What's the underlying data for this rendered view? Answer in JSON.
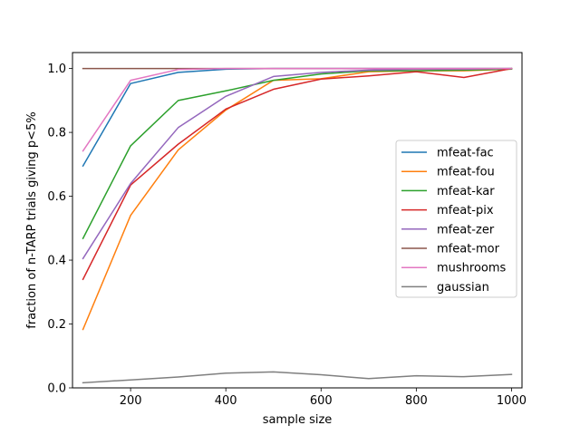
{
  "chart_data": {
    "type": "line",
    "title": "",
    "xlabel": "sample size",
    "ylabel": "fraction of n-TARP trials giving p<5%",
    "xlim": [
      78,
      1022
    ],
    "ylim": [
      0.0,
      1.05
    ],
    "xticks": [
      200,
      400,
      600,
      800,
      1000
    ],
    "yticks": [
      0.0,
      0.2,
      0.4,
      0.6,
      0.8,
      1.0
    ],
    "xtick_labels": [
      "200",
      "400",
      "600",
      "800",
      "1000"
    ],
    "ytick_labels": [
      "0.0",
      "0.2",
      "0.4",
      "0.6",
      "0.8",
      "1.0"
    ],
    "grid": false,
    "legend_position": "center-right",
    "x": [
      100,
      200,
      300,
      400,
      500,
      600,
      700,
      800,
      900,
      1000
    ],
    "series": [
      {
        "name": "mfeat-fac",
        "color": "#1f77b4",
        "values": [
          0.695,
          0.953,
          0.988,
          0.998,
          1.0,
          1.0,
          1.0,
          1.0,
          1.0,
          1.0
        ]
      },
      {
        "name": "mfeat-fou",
        "color": "#ff7f0e",
        "values": [
          0.183,
          0.54,
          0.745,
          0.87,
          0.963,
          0.968,
          0.99,
          0.993,
          0.993,
          0.998
        ]
      },
      {
        "name": "mfeat-kar",
        "color": "#2ca02c",
        "values": [
          0.468,
          0.758,
          0.9,
          0.93,
          0.963,
          0.983,
          0.993,
          0.993,
          0.995,
          0.998
        ]
      },
      {
        "name": "mfeat-pix",
        "color": "#d62728",
        "values": [
          0.34,
          0.635,
          0.763,
          0.873,
          0.935,
          0.967,
          0.977,
          0.99,
          0.972,
          1.0
        ]
      },
      {
        "name": "mfeat-zer",
        "color": "#9467bd",
        "values": [
          0.405,
          0.64,
          0.815,
          0.913,
          0.975,
          0.988,
          0.995,
          0.998,
          0.998,
          1.0
        ]
      },
      {
        "name": "mfeat-mor",
        "color": "#8c564b",
        "values": [
          1.0,
          1.0,
          1.0,
          1.0,
          1.0,
          1.0,
          1.0,
          1.0,
          1.0,
          1.0
        ]
      },
      {
        "name": "mushrooms",
        "color": "#e377c2",
        "values": [
          0.742,
          0.963,
          0.997,
          1.0,
          1.0,
          1.0,
          1.0,
          1.0,
          1.0,
          1.0
        ]
      },
      {
        "name": "gaussian",
        "color": "#7f7f7f",
        "values": [
          0.016,
          0.025,
          0.034,
          0.046,
          0.05,
          0.041,
          0.029,
          0.038,
          0.035,
          0.042
        ]
      }
    ]
  }
}
